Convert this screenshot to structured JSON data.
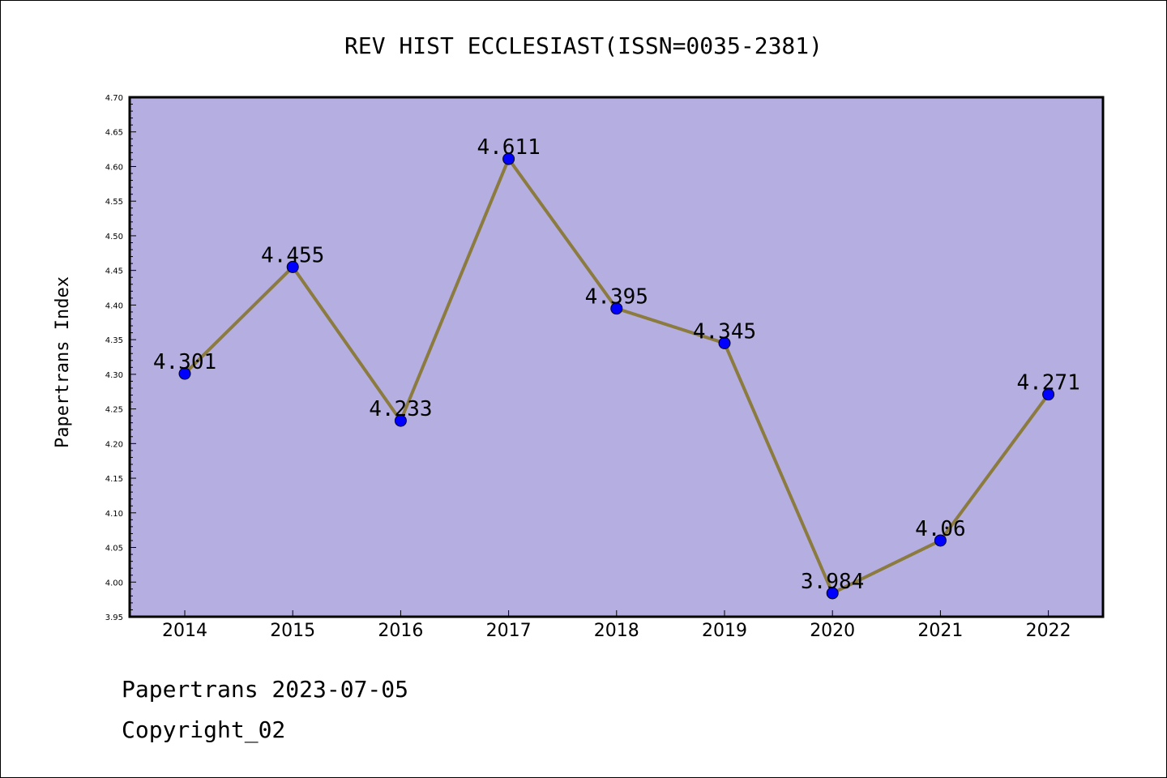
{
  "chart_data": {
    "type": "line",
    "title": "REV HIST ECCLESIAST(ISSN=0035-2381)",
    "xlabel": "",
    "ylabel": "Papertrans Index",
    "categories": [
      "2014",
      "2015",
      "2016",
      "2017",
      "2018",
      "2019",
      "2020",
      "2021",
      "2022"
    ],
    "values": [
      4.301,
      4.455,
      4.233,
      4.611,
      4.395,
      4.345,
      3.984,
      4.06,
      4.271
    ],
    "data_labels": [
      "4.301",
      "4.455",
      "4.233",
      "4.611",
      "4.395",
      "4.345",
      "3.984",
      "4.06",
      "4.271"
    ],
    "ylim": [
      3.95,
      4.7
    ],
    "yticks": [
      "3.95",
      "4.00",
      "4.05",
      "4.10",
      "4.15",
      "4.20",
      "4.25",
      "4.30",
      "4.35",
      "4.40",
      "4.45",
      "4.50",
      "4.55",
      "4.60",
      "4.65",
      "4.70"
    ],
    "grid": false,
    "legend": "none",
    "colors": {
      "plot_background": "#b5aee1",
      "line": "#8b7b3e",
      "marker": "#0000ff"
    }
  },
  "footer": {
    "line1": "Papertrans 2023-07-05",
    "line2": "Copyright_02"
  }
}
